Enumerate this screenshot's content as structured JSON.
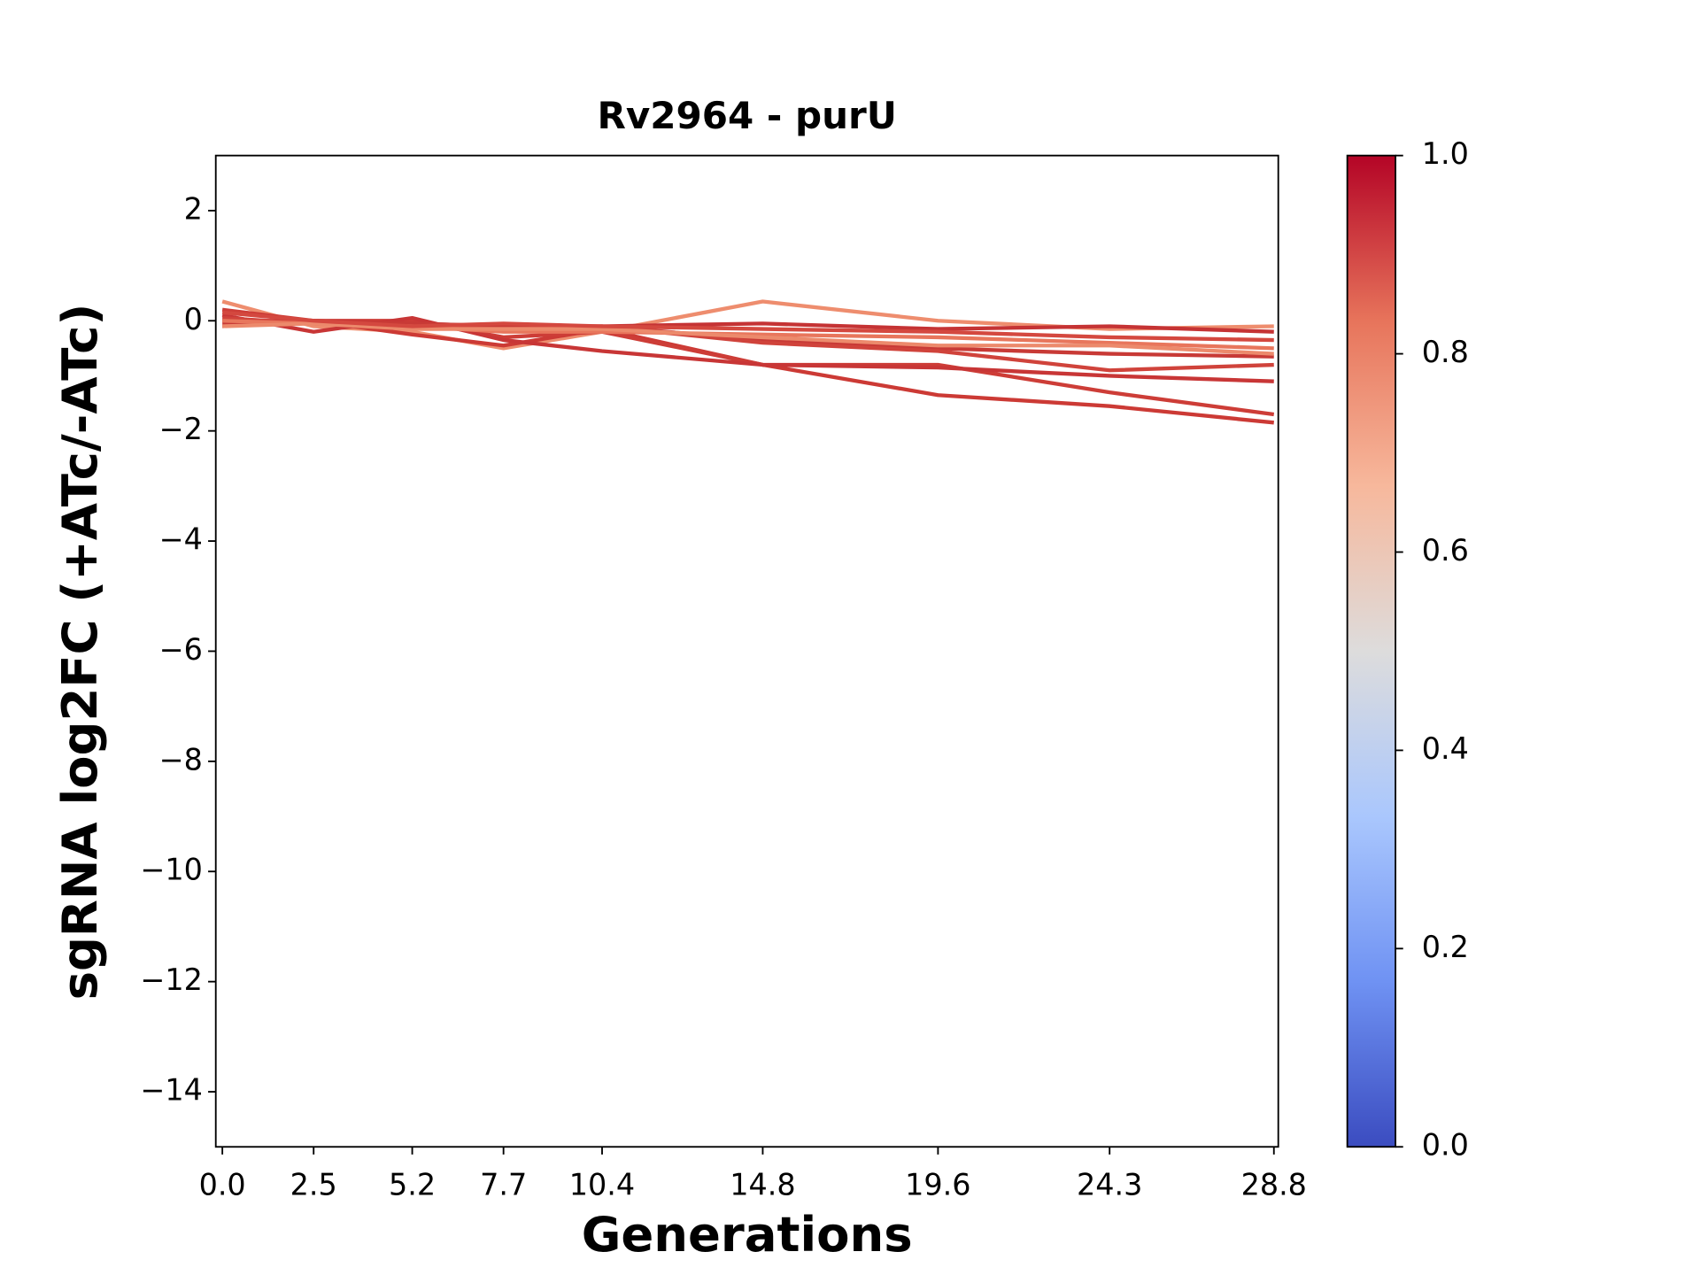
{
  "chart_data": {
    "type": "line",
    "title": "Rv2964 - purU",
    "xlabel": "Generations",
    "ylabel": "sgRNA log2FC (+ATc/-ATc)",
    "x": [
      0.0,
      2.5,
      5.2,
      7.7,
      10.4,
      14.8,
      19.6,
      24.3,
      28.8
    ],
    "xlim": [
      -0.18,
      28.92
    ],
    "xticks": [
      {
        "value": 0,
        "label": "0.0"
      },
      2.5,
      5.2,
      7.7,
      10.4,
      14.8,
      19.6,
      24.3,
      28.8
    ],
    "ylim": [
      -15,
      3
    ],
    "yticks": [
      {
        "value": -14,
        "label": "−14"
      },
      {
        "value": -12,
        "label": "−12"
      },
      {
        "value": -10,
        "label": "−10"
      },
      {
        "value": -8,
        "label": "−8"
      },
      {
        "value": -6,
        "label": "−6"
      },
      {
        "value": -4,
        "label": "−4"
      },
      {
        "value": -2,
        "label": "−2"
      },
      0,
      2
    ],
    "grid": false,
    "series": [
      {
        "color": "#ee8d6e",
        "values": [
          0.35,
          -0.1,
          -0.2,
          -0.5,
          -0.2,
          0.35,
          0.0,
          -0.15,
          -0.1
        ]
      },
      {
        "color": "#cc3a35",
        "values": [
          -0.1,
          0.0,
          -0.25,
          -0.45,
          -0.15,
          -0.8,
          -1.35,
          -1.55,
          -1.85
        ]
      },
      {
        "color": "#cd3d37",
        "values": [
          0.2,
          0.0,
          0.0,
          -0.3,
          -0.2,
          -0.8,
          -0.8,
          -1.3,
          -1.7
        ]
      },
      {
        "color": "#c83636",
        "values": [
          0.1,
          -0.2,
          0.05,
          -0.35,
          -0.55,
          -0.8,
          -0.85,
          -1.0,
          -1.1
        ]
      },
      {
        "color": "#c53334",
        "values": [
          0.0,
          0.0,
          -0.05,
          -0.1,
          -0.1,
          -0.05,
          -0.15,
          -0.1,
          -0.2
        ]
      },
      {
        "color": "#c83a36",
        "values": [
          -0.05,
          0.0,
          -0.05,
          -0.1,
          -0.1,
          -0.35,
          -0.5,
          -0.6,
          -0.65
        ]
      },
      {
        "color": "#d0433b",
        "values": [
          0.05,
          -0.05,
          -0.1,
          -0.15,
          -0.1,
          -0.4,
          -0.55,
          -0.9,
          -0.8
        ]
      },
      {
        "color": "#e8765c",
        "values": [
          0.0,
          -0.05,
          -0.1,
          -0.2,
          -0.2,
          -0.25,
          -0.3,
          -0.4,
          -0.5
        ]
      },
      {
        "color": "#ec8a6c",
        "values": [
          -0.1,
          -0.05,
          -0.15,
          -0.15,
          -0.15,
          -0.3,
          -0.45,
          -0.45,
          -0.6
        ]
      },
      {
        "color": "#d4483f",
        "values": [
          0.15,
          0.0,
          -0.1,
          -0.05,
          -0.1,
          -0.15,
          -0.2,
          -0.3,
          -0.35
        ]
      }
    ],
    "colorbar": {
      "lim": [
        0,
        1
      ],
      "ticks": [
        {
          "value": 0,
          "label": "0.0"
        },
        0.2,
        0.4,
        0.6,
        0.8,
        {
          "value": 1,
          "label": "1.0"
        }
      ],
      "colors": [
        "#3b4cc0",
        "#6f92f3",
        "#aac7fd",
        "#dddcdc",
        "#f7b89c",
        "#e7745b",
        "#b40426"
      ]
    }
  }
}
